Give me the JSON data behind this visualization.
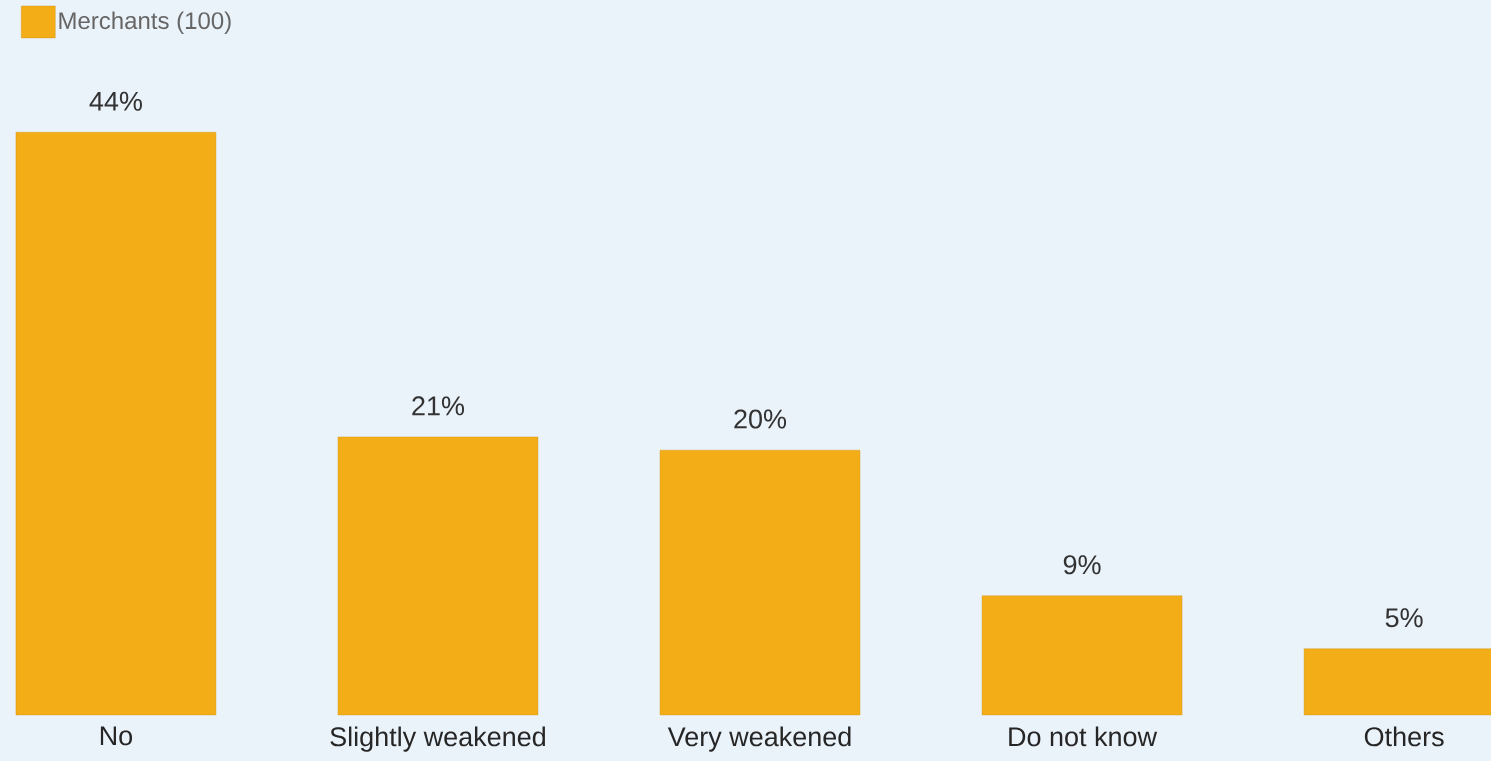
{
  "chart_data": {
    "type": "bar",
    "categories": [
      "No",
      "Slightly weakened",
      "Very weakened",
      "Do not know",
      "Others"
    ],
    "series": [
      {
        "name": "Merchants (100)",
        "color": "#f3ad17",
        "values": [
          44,
          21,
          20,
          9,
          5
        ],
        "value_labels": [
          "44%",
          "21%",
          "20%",
          "9%",
          "5%"
        ]
      }
    ],
    "legend": "top left"
  }
}
